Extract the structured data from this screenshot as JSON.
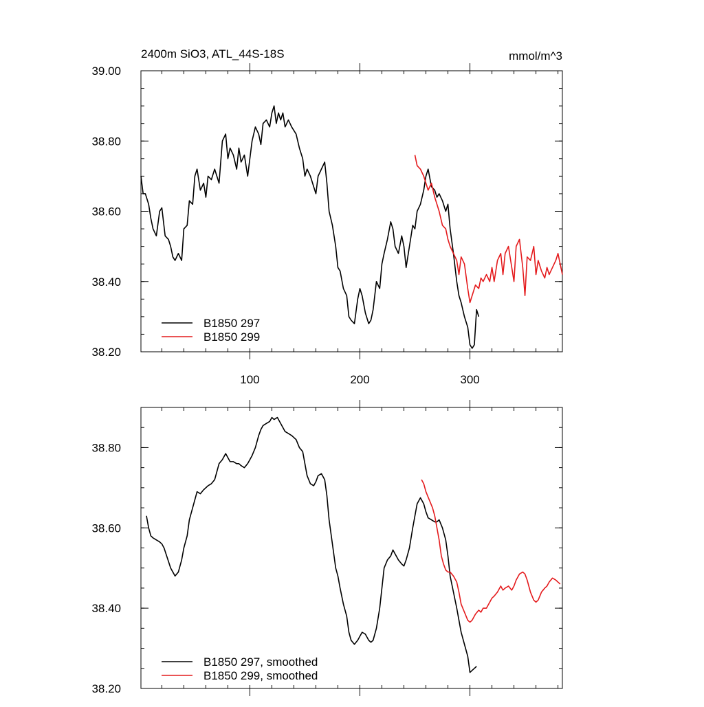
{
  "chart_data": [
    {
      "type": "line",
      "title": "2400m SiO3, ATL_44S-18S",
      "units": "mmol/m^3",
      "xlim": [
        1,
        384
      ],
      "ylim": [
        38.2,
        39.0
      ],
      "x_ticks": [
        100,
        200,
        300
      ],
      "x_tick_labels": [
        "100",
        "200",
        "300"
      ],
      "y_ticks": [
        38.2,
        38.4,
        38.6,
        38.8,
        39.0
      ],
      "y_tick_labels": [
        "38.20",
        "38.40",
        "38.60",
        "38.80",
        "39.00"
      ],
      "grid": false,
      "legend_position": "bottom-left",
      "series": [
        {
          "name": "B1850 297",
          "color": "#000000",
          "x": [
            1,
            3,
            5,
            8,
            10,
            12,
            15,
            18,
            20,
            23,
            26,
            28,
            30,
            32,
            35,
            38,
            40,
            43,
            45,
            48,
            50,
            52,
            55,
            58,
            60,
            62,
            65,
            68,
            70,
            72,
            75,
            78,
            80,
            82,
            85,
            88,
            90,
            92,
            95,
            98,
            100,
            102,
            105,
            108,
            110,
            112,
            115,
            118,
            120,
            122,
            124,
            126,
            128,
            130,
            132,
            135,
            138,
            140,
            142,
            145,
            148,
            150,
            152,
            155,
            158,
            160,
            162,
            165,
            168,
            170,
            172,
            175,
            178,
            180,
            182,
            185,
            188,
            190,
            192,
            195,
            198,
            200,
            202,
            205,
            208,
            210,
            212,
            215,
            218,
            220,
            222,
            225,
            228,
            230,
            232,
            235,
            238,
            240,
            242,
            245,
            248,
            250,
            252,
            255,
            258,
            260,
            262,
            265,
            268,
            270,
            272,
            275,
            278,
            280,
            282,
            285,
            288,
            290,
            292,
            295,
            298,
            300,
            302,
            304,
            306,
            308
          ],
          "values": [
            38.7,
            38.65,
            38.65,
            38.62,
            38.58,
            38.55,
            38.53,
            38.6,
            38.61,
            38.53,
            38.52,
            38.5,
            38.47,
            38.46,
            38.48,
            38.46,
            38.55,
            38.56,
            38.63,
            38.62,
            38.7,
            38.72,
            38.66,
            38.68,
            38.64,
            38.7,
            38.69,
            38.72,
            38.7,
            38.68,
            38.8,
            38.82,
            38.75,
            38.78,
            38.76,
            38.72,
            38.78,
            38.74,
            38.76,
            38.7,
            38.75,
            38.8,
            38.84,
            38.82,
            38.79,
            38.85,
            38.86,
            38.84,
            38.88,
            38.9,
            38.85,
            38.88,
            38.86,
            38.88,
            38.84,
            38.86,
            38.84,
            38.83,
            38.82,
            38.78,
            38.75,
            38.7,
            38.72,
            38.7,
            38.67,
            38.65,
            38.7,
            38.72,
            38.74,
            38.68,
            38.6,
            38.56,
            38.5,
            38.44,
            38.43,
            38.38,
            38.36,
            38.3,
            38.29,
            38.28,
            38.35,
            38.38,
            38.36,
            38.31,
            38.28,
            38.29,
            38.32,
            38.4,
            38.38,
            38.45,
            38.48,
            38.52,
            38.57,
            38.55,
            38.5,
            38.48,
            38.53,
            38.5,
            38.44,
            38.5,
            38.56,
            38.55,
            38.6,
            38.62,
            38.66,
            38.7,
            38.72,
            38.67,
            38.66,
            38.64,
            38.65,
            38.63,
            38.6,
            38.62,
            38.55,
            38.48,
            38.4,
            38.36,
            38.34,
            38.3,
            38.27,
            38.22,
            38.21,
            38.22,
            38.32,
            38.3
          ]
        },
        {
          "name": "B1850 299",
          "color": "#e41a1c",
          "x": [
            250,
            252,
            255,
            258,
            260,
            262,
            265,
            268,
            270,
            272,
            275,
            278,
            280,
            282,
            285,
            288,
            290,
            292,
            295,
            298,
            300,
            302,
            305,
            308,
            310,
            312,
            315,
            318,
            320,
            322,
            325,
            328,
            330,
            332,
            335,
            338,
            340,
            342,
            345,
            348,
            350,
            352,
            355,
            358,
            360,
            362,
            365,
            368,
            370,
            372,
            375,
            378,
            380,
            382,
            384
          ],
          "values": [
            38.76,
            38.73,
            38.72,
            38.7,
            38.68,
            38.66,
            38.68,
            38.64,
            38.62,
            38.6,
            38.56,
            38.55,
            38.52,
            38.5,
            38.48,
            38.46,
            38.42,
            38.47,
            38.45,
            38.38,
            38.34,
            38.36,
            38.39,
            38.38,
            38.41,
            38.4,
            38.42,
            38.4,
            38.44,
            38.4,
            38.46,
            38.48,
            38.42,
            38.48,
            38.5,
            38.44,
            38.4,
            38.5,
            38.52,
            38.44,
            38.36,
            38.47,
            38.46,
            38.5,
            38.42,
            38.46,
            38.43,
            38.41,
            38.44,
            38.42,
            38.44,
            38.46,
            38.48,
            38.45,
            38.42
          ]
        }
      ]
    },
    {
      "type": "line",
      "xlim": [
        1,
        384
      ],
      "ylim": [
        38.2,
        38.9
      ],
      "x_ticks": [
        100,
        200,
        300
      ],
      "y_ticks": [
        38.2,
        38.4,
        38.6,
        38.8
      ],
      "y_tick_labels": [
        "38.20",
        "38.40",
        "38.60",
        "38.80"
      ],
      "grid": false,
      "legend_position": "bottom-left",
      "series": [
        {
          "name": "B1850 297, smoothed",
          "color": "#000000",
          "x": [
            6,
            8,
            10,
            12,
            15,
            18,
            20,
            22,
            25,
            28,
            30,
            32,
            35,
            38,
            40,
            43,
            45,
            48,
            50,
            52,
            55,
            58,
            60,
            62,
            65,
            68,
            70,
            72,
            75,
            78,
            80,
            82,
            85,
            88,
            90,
            92,
            95,
            98,
            100,
            102,
            105,
            108,
            110,
            112,
            115,
            118,
            120,
            122,
            125,
            128,
            130,
            132,
            135,
            138,
            140,
            142,
            145,
            148,
            150,
            152,
            155,
            158,
            160,
            162,
            165,
            168,
            170,
            172,
            175,
            178,
            180,
            182,
            185,
            188,
            190,
            192,
            195,
            198,
            200,
            202,
            205,
            208,
            210,
            212,
            215,
            218,
            220,
            222,
            225,
            228,
            230,
            232,
            235,
            238,
            240,
            242,
            245,
            248,
            250,
            252,
            255,
            258,
            260,
            262,
            265,
            268,
            270,
            272,
            275,
            278,
            280,
            282,
            285,
            288,
            290,
            292,
            295,
            298,
            300,
            302,
            304,
            306
          ],
          "values": [
            38.63,
            38.6,
            38.58,
            38.575,
            38.57,
            38.565,
            38.56,
            38.55,
            38.525,
            38.5,
            38.49,
            38.48,
            38.49,
            38.52,
            38.55,
            38.58,
            38.62,
            38.65,
            38.67,
            38.69,
            38.685,
            38.695,
            38.7,
            38.705,
            38.71,
            38.72,
            38.74,
            38.76,
            38.77,
            38.785,
            38.775,
            38.765,
            38.765,
            38.76,
            38.76,
            38.755,
            38.75,
            38.76,
            38.77,
            38.78,
            38.8,
            38.83,
            38.845,
            38.855,
            38.86,
            38.865,
            38.875,
            38.87,
            38.875,
            38.86,
            38.85,
            38.84,
            38.835,
            38.83,
            38.825,
            38.82,
            38.8,
            38.79,
            38.76,
            38.73,
            38.71,
            38.705,
            38.715,
            38.73,
            38.735,
            38.72,
            38.68,
            38.62,
            38.56,
            38.5,
            38.48,
            38.45,
            38.41,
            38.38,
            38.34,
            38.32,
            38.31,
            38.32,
            38.33,
            38.34,
            38.335,
            38.32,
            38.315,
            38.32,
            38.35,
            38.4,
            38.45,
            38.5,
            38.52,
            38.53,
            38.545,
            38.535,
            38.52,
            38.51,
            38.505,
            38.52,
            38.55,
            38.6,
            38.63,
            38.66,
            38.675,
            38.66,
            38.64,
            38.625,
            38.62,
            38.615,
            38.615,
            38.62,
            38.6,
            38.57,
            38.53,
            38.48,
            38.44,
            38.4,
            38.37,
            38.34,
            38.31,
            38.28,
            38.24,
            38.245,
            38.25,
            38.255
          ]
        },
        {
          "name": "B1850 299, smoothed",
          "color": "#e41a1c",
          "x": [
            256,
            258,
            260,
            263,
            266,
            268,
            270,
            272,
            274,
            276,
            278,
            280,
            282,
            285,
            288,
            290,
            292,
            295,
            298,
            300,
            302,
            305,
            308,
            310,
            312,
            315,
            318,
            320,
            322,
            325,
            328,
            330,
            332,
            335,
            338,
            340,
            342,
            345,
            348,
            350,
            352,
            355,
            358,
            360,
            362,
            365,
            368,
            370,
            372,
            375,
            378,
            380,
            382
          ],
          "values": [
            38.72,
            38.71,
            38.69,
            38.67,
            38.65,
            38.63,
            38.6,
            38.57,
            38.53,
            38.51,
            38.495,
            38.49,
            38.49,
            38.48,
            38.465,
            38.44,
            38.41,
            38.39,
            38.37,
            38.365,
            38.37,
            38.385,
            38.395,
            38.39,
            38.4,
            38.4,
            38.415,
            38.425,
            38.43,
            38.44,
            38.455,
            38.445,
            38.45,
            38.455,
            38.445,
            38.455,
            38.47,
            38.485,
            38.49,
            38.485,
            38.47,
            38.44,
            38.42,
            38.415,
            38.42,
            38.44,
            38.45,
            38.455,
            38.465,
            38.475,
            38.47,
            38.465,
            38.46
          ]
        }
      ]
    }
  ]
}
